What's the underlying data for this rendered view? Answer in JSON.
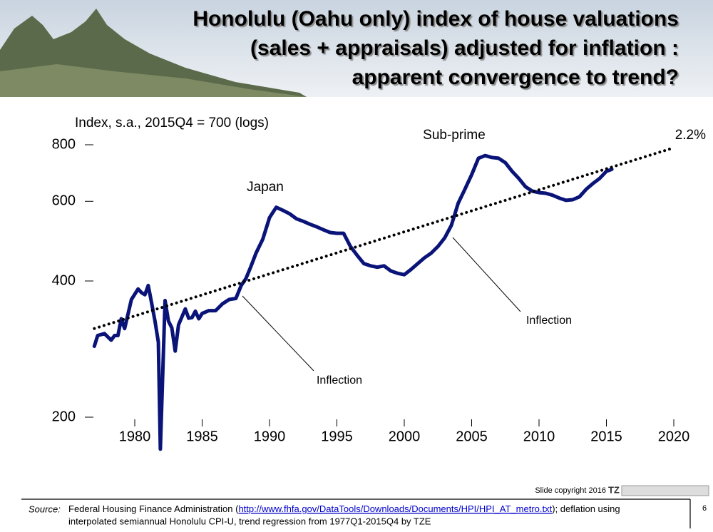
{
  "header": {
    "title_lines": [
      "Honolulu (Oahu only) index of house valuations",
      "(sales + appraisals) adjusted for inflation :",
      "apparent convergence to trend?"
    ]
  },
  "chart_data": {
    "type": "line",
    "y_label": "Index, s.a., 2015Q4 = 700 (logs)",
    "log_y": true,
    "xlim": [
      1977,
      2021
    ],
    "ylim": [
      165,
      850
    ],
    "xticks": [
      1980,
      1985,
      1990,
      1995,
      2000,
      2005,
      2010,
      2015,
      2020
    ],
    "yticks": [
      200,
      400,
      600,
      800
    ],
    "series": [
      {
        "name": "Index",
        "color": "#0a1478",
        "style": "solid",
        "x": [
          1977.0,
          1977.25,
          1977.75,
          1978.25,
          1978.5,
          1978.75,
          1979.0,
          1979.25,
          1979.75,
          1980.25,
          1980.5,
          1980.75,
          1981.0,
          1981.25,
          1981.5,
          1981.75,
          1981.9,
          1982.25,
          1982.5,
          1982.75,
          1983.0,
          1983.25,
          1983.75,
          1984.0,
          1984.25,
          1984.5,
          1984.75,
          1985.0,
          1985.5,
          1986.0,
          1986.5,
          1987.0,
          1987.5,
          1987.9,
          1988.25,
          1988.6,
          1989.0,
          1989.5,
          1990.0,
          1990.5,
          1991.0,
          1991.5,
          1992.0,
          1992.5,
          1993.0,
          1993.5,
          1994.0,
          1994.5,
          1995.0,
          1995.5,
          1996.0,
          1996.5,
          1997.0,
          1997.5,
          1998.0,
          1998.5,
          1999.0,
          1999.5,
          2000.0,
          2000.5,
          2001.0,
          2001.5,
          2002.0,
          2002.5,
          2003.0,
          2003.5,
          2004.0,
          2004.5,
          2005.0,
          2005.5,
          2006.0,
          2006.5,
          2007.0,
          2007.5,
          2008.0,
          2008.5,
          2009.0,
          2009.5,
          2010.0,
          2010.5,
          2011.0,
          2011.5,
          2012.0,
          2012.5,
          2013.0,
          2013.5,
          2014.0,
          2014.5,
          2015.0,
          2015.4
        ],
        "values": [
          287,
          303,
          306,
          296,
          303,
          303,
          330,
          314,
          364,
          384,
          377,
          373,
          391,
          358,
          326,
          293,
          170,
          362,
          326,
          315,
          280,
          320,
          347,
          331,
          332,
          343,
          330,
          339,
          344,
          344,
          356,
          364,
          366,
          391,
          405,
          429,
          461,
          495,
          552,
          582,
          573,
          563,
          549,
          542,
          534,
          527,
          519,
          512,
          510,
          510,
          477,
          456,
          437,
          432,
          429,
          432,
          421,
          416,
          413,
          424,
          437,
          450,
          461,
          477,
          498,
          531,
          594,
          638,
          687,
          747,
          757,
          750,
          747,
          730,
          699,
          674,
          646,
          632,
          627,
          625,
          619,
          610,
          603,
          605,
          614,
          638,
          657,
          674,
          699,
          706
        ]
      },
      {
        "name": "Trend",
        "color": "#000000",
        "style": "dotted",
        "x": [
          1977,
          2020
        ],
        "values": [
          314,
          788
        ]
      }
    ],
    "annotations": {
      "japan": "Japan",
      "subprime": "Sub-prime",
      "trend_rate": "2.2%",
      "inflection_1": "Inflection",
      "inflection_2": "Inflection"
    }
  },
  "footer": {
    "copyright": "Slide copyright 2016",
    "logo": "TZ",
    "source_label": "Source:",
    "source_text_1": "Federal Housing Finance Administration (",
    "link": "http://www.fhfa.gov/DataTools/Downloads/Documents/HPI/HPI_AT_metro.txt",
    "source_text_2": ");    deflation using",
    "source_line_2": "interpolated semiannual Honolulu CPI-U, trend regression from 1977Q1-2015Q4 by TZE",
    "page_number": "6"
  }
}
